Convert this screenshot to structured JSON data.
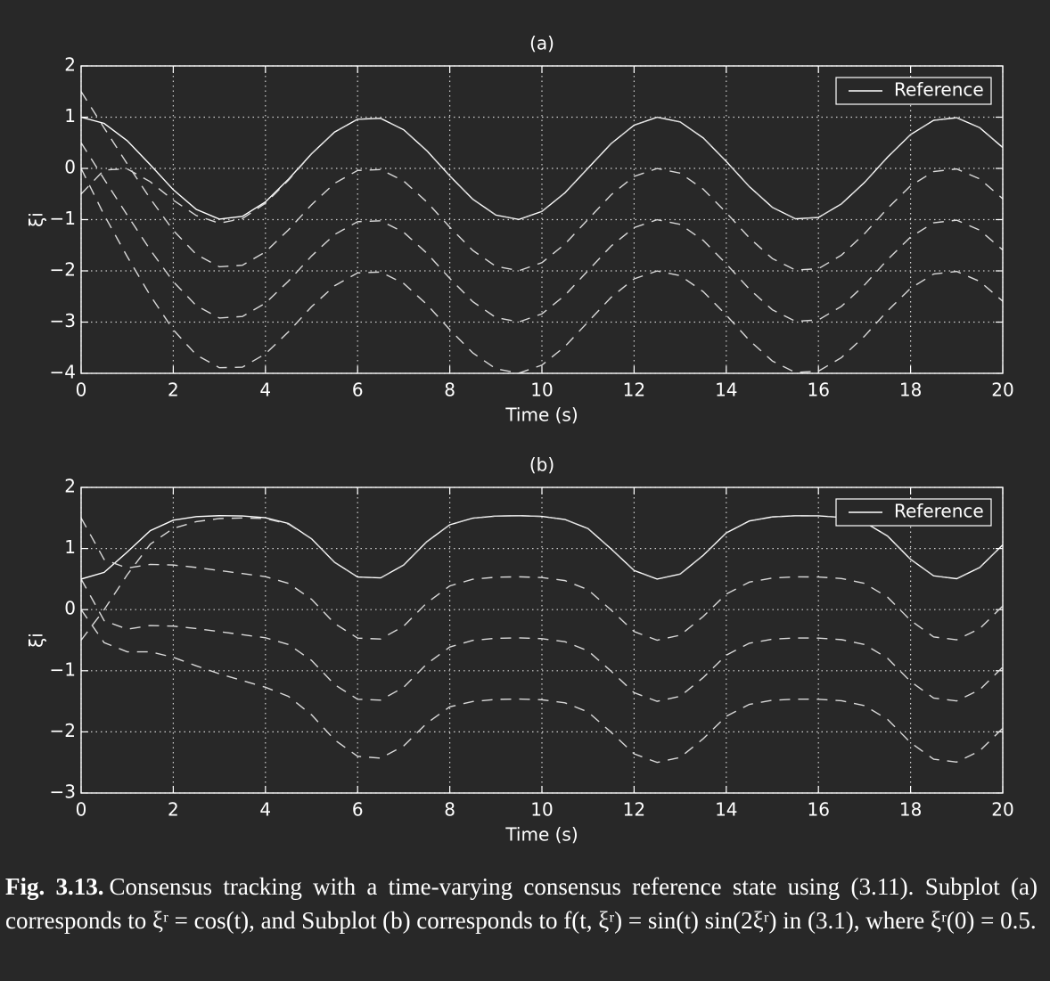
{
  "chart_data": [
    {
      "type": "line",
      "title": "(a)",
      "xlabel": "Time (s)",
      "ylabel": "ξi",
      "grid": true,
      "legend": "upper right",
      "x": [
        0,
        0.5,
        1,
        1.5,
        2,
        2.5,
        3,
        3.5,
        4,
        4.5,
        5,
        5.5,
        6,
        6.5,
        7,
        7.5,
        8,
        8.5,
        9,
        9.5,
        10,
        10.5,
        11,
        11.5,
        12,
        12.5,
        13,
        13.5,
        14,
        14.5,
        15,
        15.5,
        16,
        16.5,
        17,
        17.5,
        18,
        18.5,
        19,
        19.5,
        20
      ],
      "xlim": [
        0,
        20
      ],
      "xticks": [
        0,
        2,
        4,
        6,
        8,
        10,
        12,
        14,
        16,
        18,
        20
      ],
      "ylim": [
        -4,
        2
      ],
      "yticks": [
        {
          "value": -4,
          "label": "−4"
        },
        {
          "value": -3,
          "label": "−3"
        },
        {
          "value": -2,
          "label": "−2"
        },
        {
          "value": -1,
          "label": "−1"
        },
        0,
        1,
        2
      ],
      "series": [
        {
          "name": "Reference",
          "color": "#ffffff",
          "linestyle": "solid",
          "values": [
            1,
            0.878,
            0.54,
            0.071,
            -0.416,
            -0.801,
            -0.99,
            -0.936,
            -0.654,
            -0.211,
            0.284,
            0.709,
            0.96,
            0.977,
            0.754,
            0.347,
            -0.146,
            -0.602,
            -0.911,
            -0.997,
            -0.839,
            -0.476,
            0.004,
            0.483,
            0.844,
            0.998,
            0.907,
            0.595,
            0.137,
            -0.355,
            -0.76,
            -0.983,
            -0.958,
            -0.692,
            -0.275,
            0.22,
            0.66,
            0.939,
            0.989,
            0.795,
            0.408
          ]
        },
        {
          "color": "#d9d9d9",
          "linestyle": "dashed",
          "values": [
            -0.5,
            -0.03,
            -0.01,
            -0.26,
            -0.62,
            -0.92,
            -1.07,
            -0.98,
            -0.68,
            -0.23,
            0.284,
            0.709,
            0.96,
            0.977,
            0.754,
            0.347,
            -0.146,
            -0.602,
            -0.911,
            -0.997,
            -0.839,
            -0.476,
            0.004,
            0.483,
            0.844,
            0.998,
            0.907,
            0.595,
            0.137,
            -0.355,
            -0.76,
            -0.983,
            -0.958,
            -0.692,
            -0.275,
            0.22,
            0.66,
            0.939,
            0.989,
            0.795,
            0.408
          ]
        },
        {
          "color": "#d9d9d9",
          "linestyle": "dashed",
          "values": [
            1.5,
            0.79,
            0.09,
            -0.59,
            -1.21,
            -1.68,
            -1.92,
            -1.89,
            -1.63,
            -1.2,
            -0.71,
            -0.291,
            -0.04,
            -0.023,
            -0.246,
            -0.653,
            -1.146,
            -1.602,
            -1.911,
            -1.997,
            -1.839,
            -1.476,
            -0.996,
            -0.517,
            -0.156,
            -0.002,
            -0.093,
            -0.405,
            -0.863,
            -1.355,
            -1.76,
            -1.983,
            -1.958,
            -1.692,
            -1.275,
            -0.78,
            -0.34,
            -0.061,
            -0.011,
            -0.205,
            -0.592
          ]
        },
        {
          "color": "#d9d9d9",
          "linestyle": "dashed",
          "values": [
            0.5,
            -0.21,
            -0.91,
            -1.59,
            -2.21,
            -2.68,
            -2.92,
            -2.89,
            -2.63,
            -2.2,
            -1.71,
            -1.291,
            -1.04,
            -1.023,
            -1.246,
            -1.653,
            -2.146,
            -2.602,
            -2.911,
            -2.997,
            -2.839,
            -2.476,
            -1.996,
            -1.517,
            -1.156,
            -1.002,
            -1.093,
            -1.405,
            -1.863,
            -2.355,
            -2.76,
            -2.983,
            -2.958,
            -2.692,
            -2.275,
            -1.78,
            -1.34,
            -1.061,
            -1.011,
            -1.205,
            -1.592
          ]
        },
        {
          "color": "#d9d9d9",
          "linestyle": "dashed",
          "values": [
            0,
            -0.91,
            -1.72,
            -2.48,
            -3.15,
            -3.64,
            -3.89,
            -3.88,
            -3.62,
            -3.19,
            -2.7,
            -2.291,
            -2.04,
            -2.023,
            -2.246,
            -2.653,
            -3.146,
            -3.602,
            -3.911,
            -3.997,
            -3.839,
            -3.476,
            -2.996,
            -2.517,
            -2.156,
            -2.002,
            -2.093,
            -2.405,
            -2.863,
            -3.355,
            -3.76,
            -3.983,
            -3.958,
            -3.692,
            -3.275,
            -2.78,
            -2.34,
            -2.061,
            -2.011,
            -2.205,
            -2.592
          ]
        }
      ]
    },
    {
      "type": "line",
      "title": "(b)",
      "xlabel": "Time (s)",
      "ylabel": "ξi",
      "grid": true,
      "legend": "upper right",
      "x": [
        0,
        0.5,
        1,
        1.5,
        2,
        2.5,
        3,
        3.5,
        4,
        4.5,
        5,
        5.5,
        6,
        6.5,
        7,
        7.5,
        8,
        8.5,
        9,
        9.5,
        10,
        10.5,
        11,
        11.5,
        12,
        12.5,
        13,
        13.5,
        14,
        14.5,
        15,
        15.5,
        16,
        16.5,
        17,
        17.5,
        18,
        18.5,
        19,
        19.5,
        20
      ],
      "xlim": [
        0,
        20
      ],
      "xticks": [
        0,
        2,
        4,
        6,
        8,
        10,
        12,
        14,
        16,
        18,
        20
      ],
      "ylim": [
        -3,
        2
      ],
      "yticks": [
        {
          "value": -3,
          "label": "−3"
        },
        {
          "value": -2,
          "label": "−2"
        },
        {
          "value": -1,
          "label": "−1"
        },
        0,
        1,
        2
      ],
      "series": [
        {
          "name": "Reference",
          "color": "#ffffff",
          "linestyle": "solid",
          "values": [
            0.5,
            0.609,
            0.941,
            1.292,
            1.463,
            1.521,
            1.537,
            1.533,
            1.504,
            1.41,
            1.159,
            0.774,
            0.534,
            0.519,
            0.73,
            1.11,
            1.388,
            1.497,
            1.531,
            1.537,
            1.525,
            1.475,
            1.326,
            0.994,
            0.641,
            0.5,
            0.582,
            0.888,
            1.255,
            1.45,
            1.517,
            1.536,
            1.534,
            1.509,
            1.429,
            1.204,
            0.823,
            0.553,
            0.506,
            0.689,
            1.06
          ]
        },
        {
          "color": "#d9d9d9",
          "linestyle": "dashed",
          "values": [
            -0.5,
            0.0,
            0.57,
            1.07,
            1.33,
            1.44,
            1.49,
            1.5,
            1.49,
            1.4,
            1.159,
            0.774,
            0.534,
            0.519,
            0.73,
            1.11,
            1.388,
            1.497,
            1.531,
            1.537,
            1.525,
            1.475,
            1.326,
            0.994,
            0.641,
            0.5,
            0.582,
            0.888,
            1.255,
            1.45,
            1.517,
            1.536,
            1.534,
            1.509,
            1.429,
            1.204,
            0.823,
            0.553,
            0.506,
            0.689,
            1.06
          ]
        },
        {
          "color": "#d9d9d9",
          "linestyle": "dashed",
          "values": [
            1.5,
            0.82,
            0.68,
            0.74,
            0.73,
            0.69,
            0.64,
            0.59,
            0.54,
            0.43,
            0.17,
            -0.226,
            -0.466,
            -0.481,
            -0.27,
            0.11,
            0.388,
            0.497,
            0.531,
            0.537,
            0.525,
            0.475,
            0.326,
            -0.006,
            -0.359,
            -0.5,
            -0.418,
            -0.112,
            0.255,
            0.45,
            0.517,
            0.536,
            0.534,
            0.509,
            0.429,
            0.204,
            -0.177,
            -0.447,
            -0.494,
            -0.311,
            0.06
          ]
        },
        {
          "color": "#d9d9d9",
          "linestyle": "dashed",
          "values": [
            0.5,
            -0.18,
            -0.32,
            -0.26,
            -0.27,
            -0.31,
            -0.36,
            -0.41,
            -0.46,
            -0.57,
            -0.83,
            -1.226,
            -1.466,
            -1.481,
            -1.27,
            -0.89,
            -0.612,
            -0.503,
            -0.469,
            -0.463,
            -0.475,
            -0.525,
            -0.674,
            -1.006,
            -1.359,
            -1.5,
            -1.418,
            -1.112,
            -0.745,
            -0.55,
            -0.483,
            -0.464,
            -0.466,
            -0.491,
            -0.571,
            -0.796,
            -1.177,
            -1.447,
            -1.494,
            -1.311,
            -0.94
          ]
        },
        {
          "color": "#d9d9d9",
          "linestyle": "dashed",
          "values": [
            0,
            -0.54,
            -0.69,
            -0.69,
            -0.78,
            -0.92,
            -1.05,
            -1.16,
            -1.27,
            -1.42,
            -1.72,
            -2.13,
            -2.4,
            -2.43,
            -2.23,
            -1.86,
            -1.59,
            -1.503,
            -1.469,
            -1.463,
            -1.475,
            -1.525,
            -1.674,
            -2.006,
            -2.359,
            -2.5,
            -2.418,
            -2.112,
            -1.745,
            -1.55,
            -1.483,
            -1.464,
            -1.466,
            -1.491,
            -1.571,
            -1.796,
            -2.177,
            -2.447,
            -2.494,
            -2.311,
            -1.94
          ]
        }
      ]
    }
  ],
  "caption": {
    "label": "Fig. 3.13.",
    "text": "Consensus tracking with a time-varying consensus reference state using (3.11). Subplot (a) corresponds to ξʳ = cos(t), and Subplot (b) corresponds to f(t, ξʳ) = sin(t) sin(2ξʳ) in (3.1), where ξʳ(0) = 0.5."
  }
}
